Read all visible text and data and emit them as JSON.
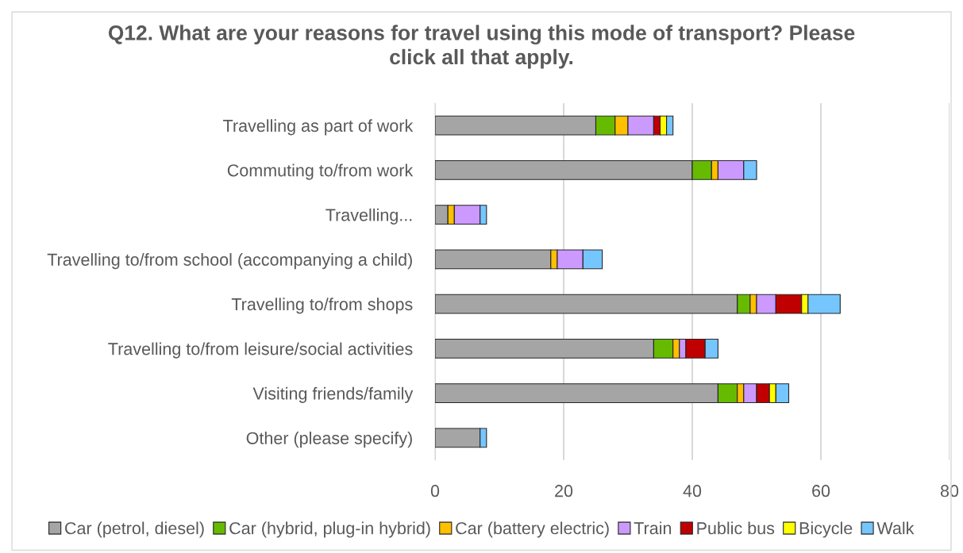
{
  "chart_data": {
    "type": "bar",
    "orientation": "horizontal",
    "stacked": true,
    "title": "Q12. What are your reasons for travel using this mode of transport? Please click all that apply.",
    "categories": [
      "Travelling as part of work",
      "Commuting to/from work",
      "Travelling...",
      "Travelling to/from school (accompanying a child)",
      "Travelling to/from shops",
      "Travelling to/from leisure/social activities",
      "Visiting friends/family",
      "Other (please specify)"
    ],
    "series": [
      {
        "name": "Car (petrol, diesel)",
        "color": "#a5a5a5",
        "values": [
          25,
          40,
          2,
          18,
          47,
          34,
          44,
          7
        ]
      },
      {
        "name": "Car (hybrid, plug-in hybrid)",
        "color": "#66bb00",
        "values": [
          3,
          3,
          0,
          0,
          2,
          3,
          3,
          0
        ]
      },
      {
        "name": "Car (battery electric)",
        "color": "#ffc000",
        "values": [
          2,
          1,
          1,
          1,
          1,
          1,
          1,
          0
        ]
      },
      {
        "name": "Train",
        "color": "#cc99ff",
        "values": [
          4,
          4,
          4,
          4,
          3,
          1,
          2,
          0
        ]
      },
      {
        "name": "Public bus",
        "color": "#c00000",
        "values": [
          1,
          0,
          0,
          0,
          4,
          3,
          2,
          0
        ]
      },
      {
        "name": "Bicycle",
        "color": "#ffff00",
        "values": [
          1,
          0,
          0,
          0,
          1,
          0,
          1,
          0
        ]
      },
      {
        "name": "Walk",
        "color": "#75c6ff",
        "values": [
          1,
          2,
          1,
          3,
          5,
          2,
          2,
          1
        ]
      }
    ],
    "xlim": [
      0,
      80
    ],
    "xticks": [
      0,
      20,
      40,
      60,
      80
    ],
    "grid": "x",
    "legend": "bottom"
  }
}
